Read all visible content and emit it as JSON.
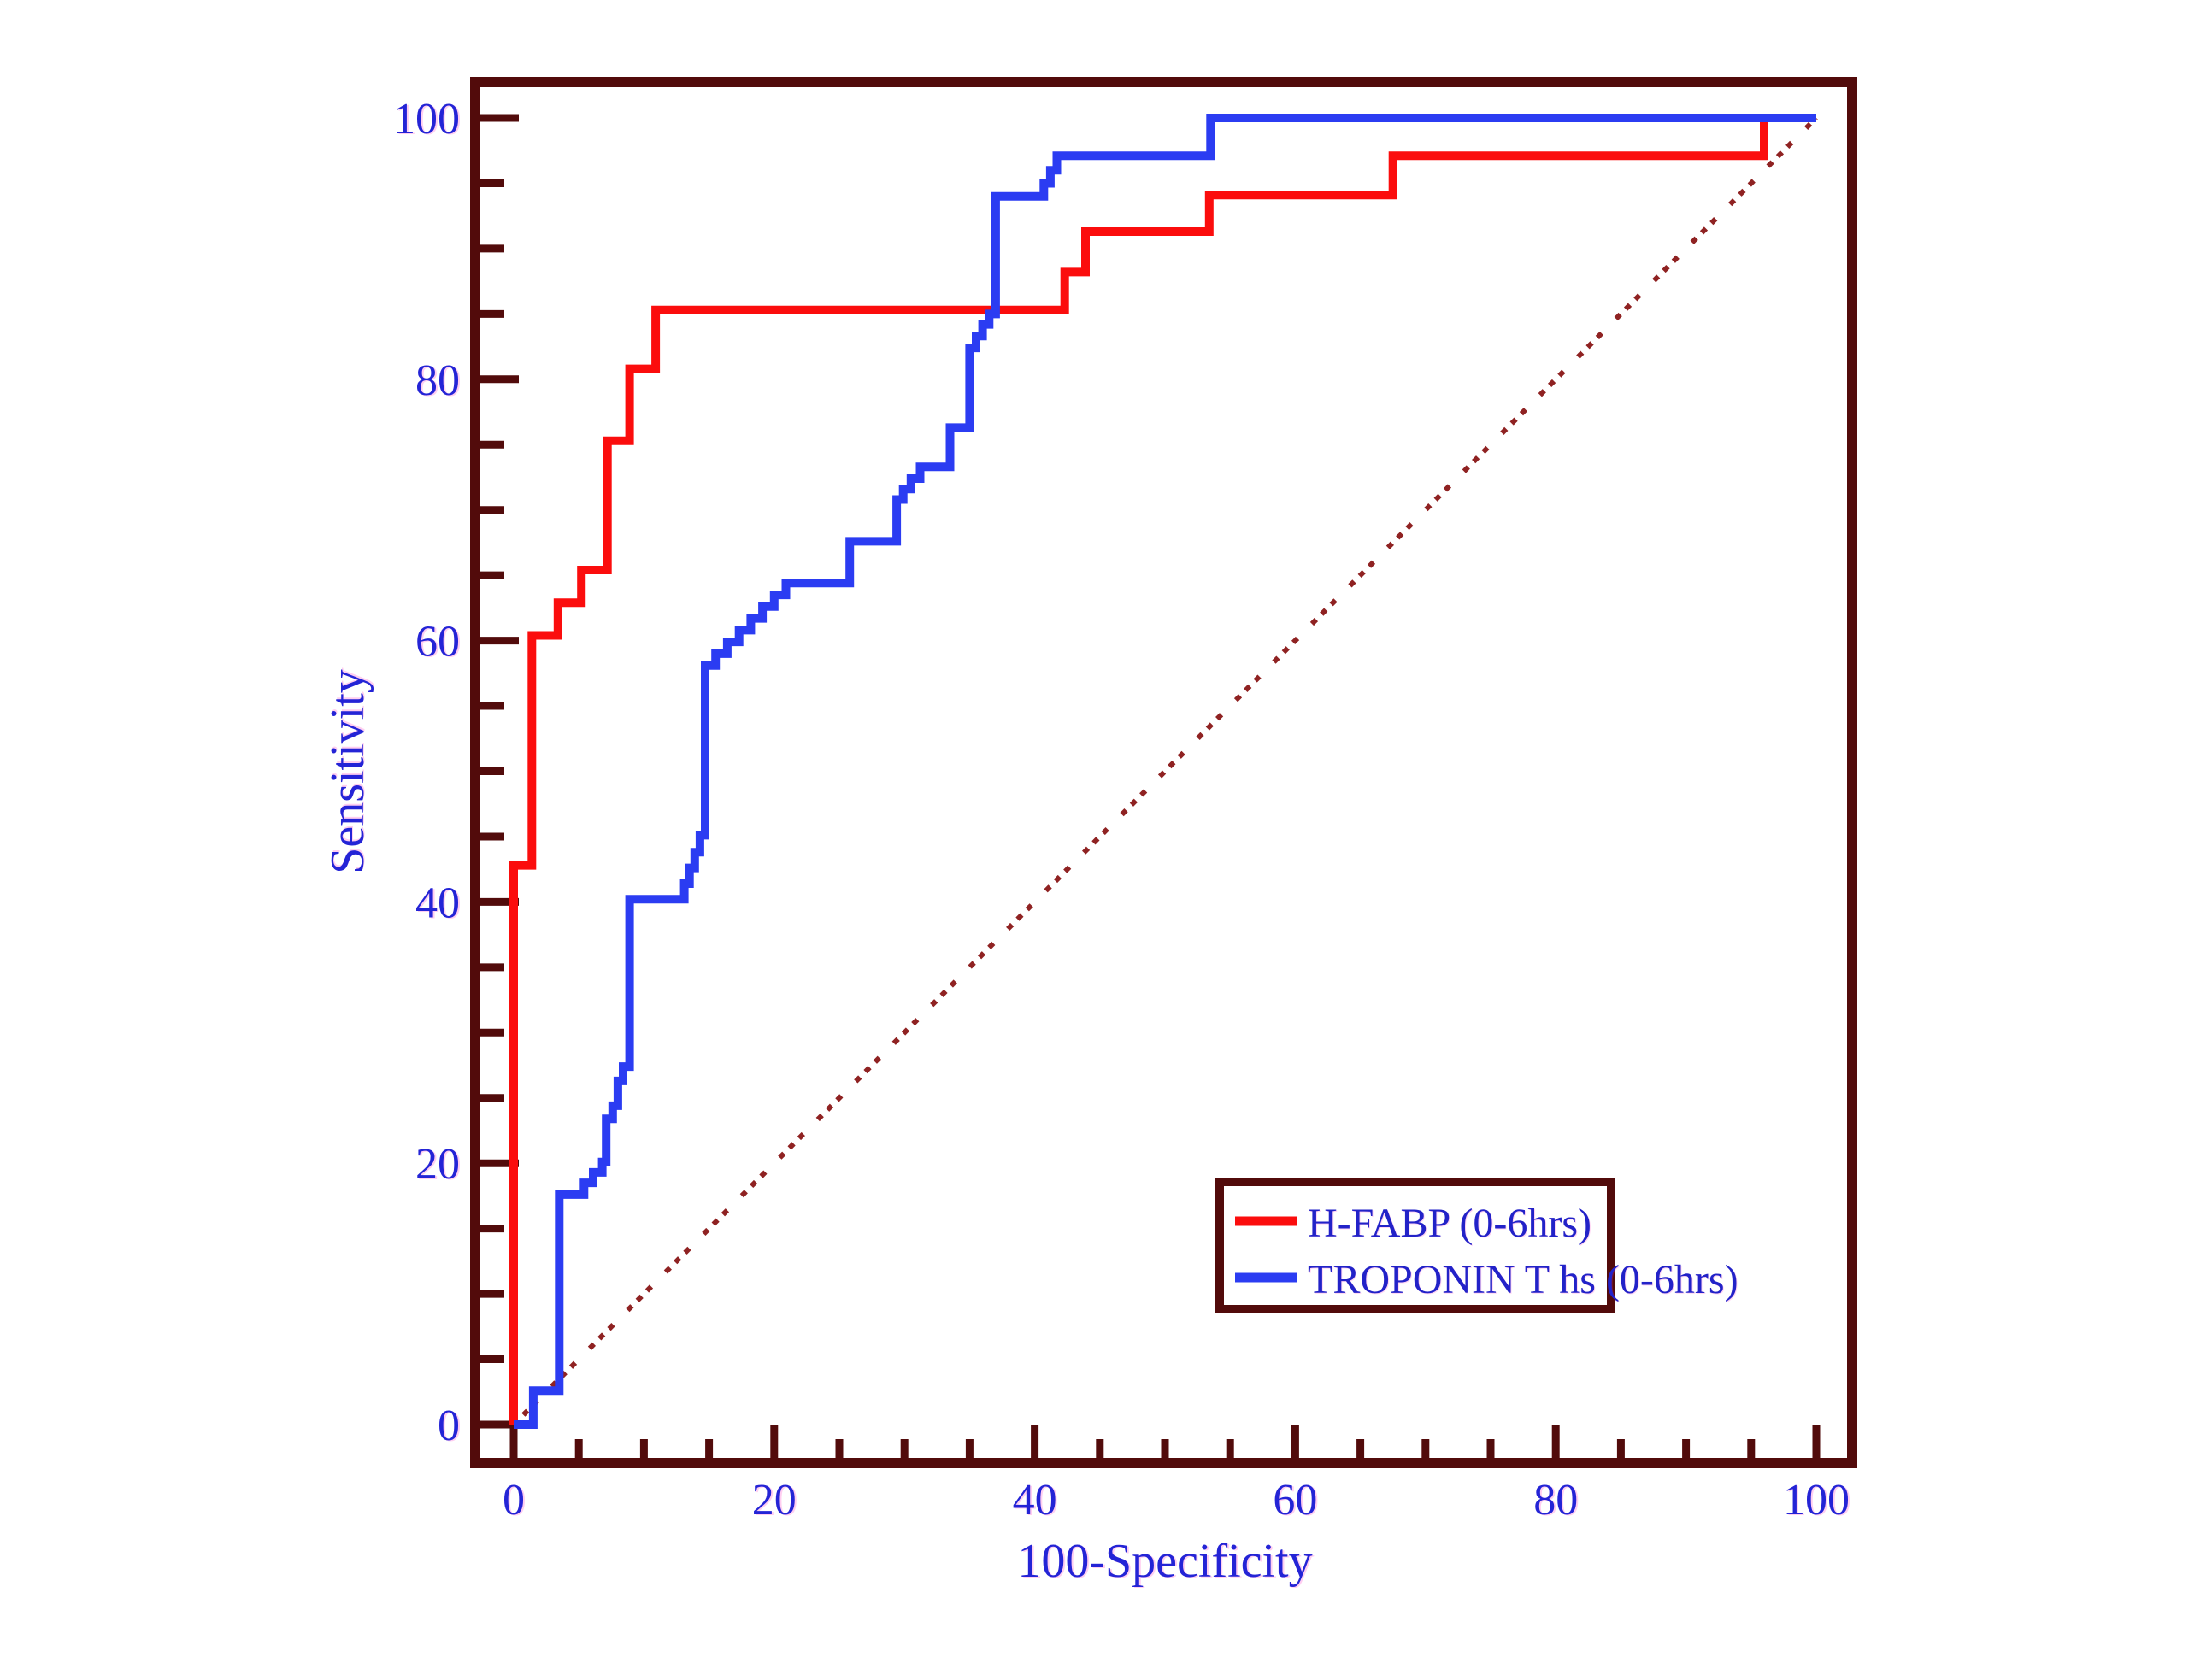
{
  "figure": {
    "background": "#ffffff",
    "frame_color": "#520b0b"
  },
  "colors": {
    "frame": "#520b0b",
    "tick": "#520b0b",
    "label_blue": "#2424d6",
    "legend_text": "#2222c8",
    "hfabp_red": "#fb0d0d",
    "troponin_blue": "#2b3cf2",
    "diagonal_dark_red": "#8f2222"
  },
  "axes": {
    "x": {
      "title": "100-Specificity",
      "tick_labels": [
        "0",
        "20",
        "40",
        "60",
        "80",
        "100"
      ],
      "major_ticks": [
        0,
        20,
        40,
        60,
        80,
        100
      ],
      "minor_tick_step": 5,
      "range": [
        0,
        100
      ]
    },
    "y": {
      "title": "Sensitivity",
      "tick_labels": [
        "0",
        "20",
        "40",
        "60",
        "80",
        "100"
      ],
      "major_ticks": [
        0,
        20,
        40,
        60,
        80,
        100
      ],
      "minor_tick_step": 5,
      "range": [
        0,
        100
      ]
    }
  },
  "legend": {
    "position": "lower-right-inside",
    "items": [
      {
        "label": "H-FABP (0-6hrs)",
        "color": "#fb0d0d"
      },
      {
        "label": "TROPONIN T hs (0-6hrs)",
        "color": "#2b3cf2"
      }
    ]
  },
  "chart_data": {
    "type": "line",
    "subtype": "roc-step-curves",
    "title": "",
    "xlabel": "100-Specificity",
    "ylabel": "Sensitivity",
    "xlim": [
      0,
      100
    ],
    "ylim": [
      0,
      100
    ],
    "grid": false,
    "reference_line": {
      "style": "dashed",
      "from": [
        0,
        0
      ],
      "to": [
        100,
        100
      ]
    },
    "series": [
      {
        "name": "H-FABP (0-6hrs)",
        "color": "#fb0d0d",
        "points": [
          [
            0,
            0
          ],
          [
            0,
            42.8
          ],
          [
            1.4,
            42.8
          ],
          [
            1.4,
            60.4
          ],
          [
            3.4,
            60.4
          ],
          [
            3.4,
            62.9
          ],
          [
            5.2,
            62.9
          ],
          [
            5.2,
            65.4
          ],
          [
            7.2,
            65.4
          ],
          [
            7.2,
            75.3
          ],
          [
            8.9,
            75.3
          ],
          [
            8.9,
            80.8
          ],
          [
            10.9,
            80.8
          ],
          [
            10.9,
            85.3
          ],
          [
            42.3,
            85.3
          ],
          [
            42.3,
            88.2
          ],
          [
            43.9,
            88.2
          ],
          [
            43.9,
            91.3
          ],
          [
            53.4,
            91.3
          ],
          [
            53.4,
            94.1
          ],
          [
            67.5,
            94.1
          ],
          [
            67.5,
            97.1
          ],
          [
            96.0,
            97.1
          ],
          [
            96.0,
            100
          ],
          [
            100,
            100
          ]
        ]
      },
      {
        "name": "TROPONIN T hs (0-6hrs)",
        "color": "#2b3cf2",
        "points": [
          [
            0,
            0
          ],
          [
            1.5,
            0
          ],
          [
            1.5,
            2.6
          ],
          [
            3.5,
            2.6
          ],
          [
            3.5,
            17.6
          ],
          [
            5.4,
            17.6
          ],
          [
            5.4,
            18.5
          ],
          [
            6.1,
            18.5
          ],
          [
            6.1,
            19.3
          ],
          [
            6.8,
            19.3
          ],
          [
            6.8,
            20.1
          ],
          [
            7.1,
            20.1
          ],
          [
            7.1,
            23.4
          ],
          [
            7.6,
            23.4
          ],
          [
            7.6,
            24.4
          ],
          [
            8.0,
            24.4
          ],
          [
            8.0,
            26.3
          ],
          [
            8.4,
            26.3
          ],
          [
            8.4,
            27.4
          ],
          [
            8.9,
            27.4
          ],
          [
            8.9,
            40.2
          ],
          [
            12.7,
            40.2
          ],
          [
            13.1,
            40.2
          ],
          [
            13.1,
            41.4
          ],
          [
            13.5,
            41.4
          ],
          [
            13.5,
            42.6
          ],
          [
            13.9,
            42.6
          ],
          [
            13.9,
            43.8
          ],
          [
            14.3,
            43.8
          ],
          [
            14.3,
            45.1
          ],
          [
            14.7,
            45.1
          ],
          [
            14.7,
            58.1
          ],
          [
            15.5,
            58.1
          ],
          [
            15.5,
            59.0
          ],
          [
            16.4,
            59.0
          ],
          [
            16.4,
            59.9
          ],
          [
            17.3,
            59.9
          ],
          [
            17.3,
            60.8
          ],
          [
            18.2,
            60.8
          ],
          [
            18.2,
            61.7
          ],
          [
            19.1,
            61.7
          ],
          [
            19.1,
            62.6
          ],
          [
            20.0,
            62.6
          ],
          [
            20.0,
            63.5
          ],
          [
            20.9,
            63.5
          ],
          [
            20.9,
            64.4
          ],
          [
            21.8,
            64.4
          ],
          [
            25.8,
            64.4
          ],
          [
            25.8,
            67.6
          ],
          [
            29.4,
            67.6
          ],
          [
            29.4,
            70.8
          ],
          [
            29.9,
            70.8
          ],
          [
            29.9,
            71.6
          ],
          [
            30.5,
            71.6
          ],
          [
            30.5,
            72.4
          ],
          [
            31.2,
            72.4
          ],
          [
            31.2,
            73.3
          ],
          [
            33.5,
            73.3
          ],
          [
            33.5,
            76.3
          ],
          [
            35.0,
            76.3
          ],
          [
            35.0,
            82.4
          ],
          [
            35.5,
            82.4
          ],
          [
            35.5,
            83.3
          ],
          [
            36.0,
            83.3
          ],
          [
            36.0,
            84.2
          ],
          [
            36.5,
            84.2
          ],
          [
            36.5,
            85.0
          ],
          [
            37.0,
            85.0
          ],
          [
            37.0,
            94.0
          ],
          [
            40.2,
            94.0
          ],
          [
            40.7,
            94.0
          ],
          [
            40.7,
            95.0
          ],
          [
            41.2,
            95.0
          ],
          [
            41.2,
            96.0
          ],
          [
            41.7,
            96.0
          ],
          [
            41.7,
            97.1
          ],
          [
            42.1,
            97.1
          ],
          [
            53.5,
            97.1
          ],
          [
            53.5,
            100
          ],
          [
            100,
            100
          ]
        ]
      }
    ]
  }
}
